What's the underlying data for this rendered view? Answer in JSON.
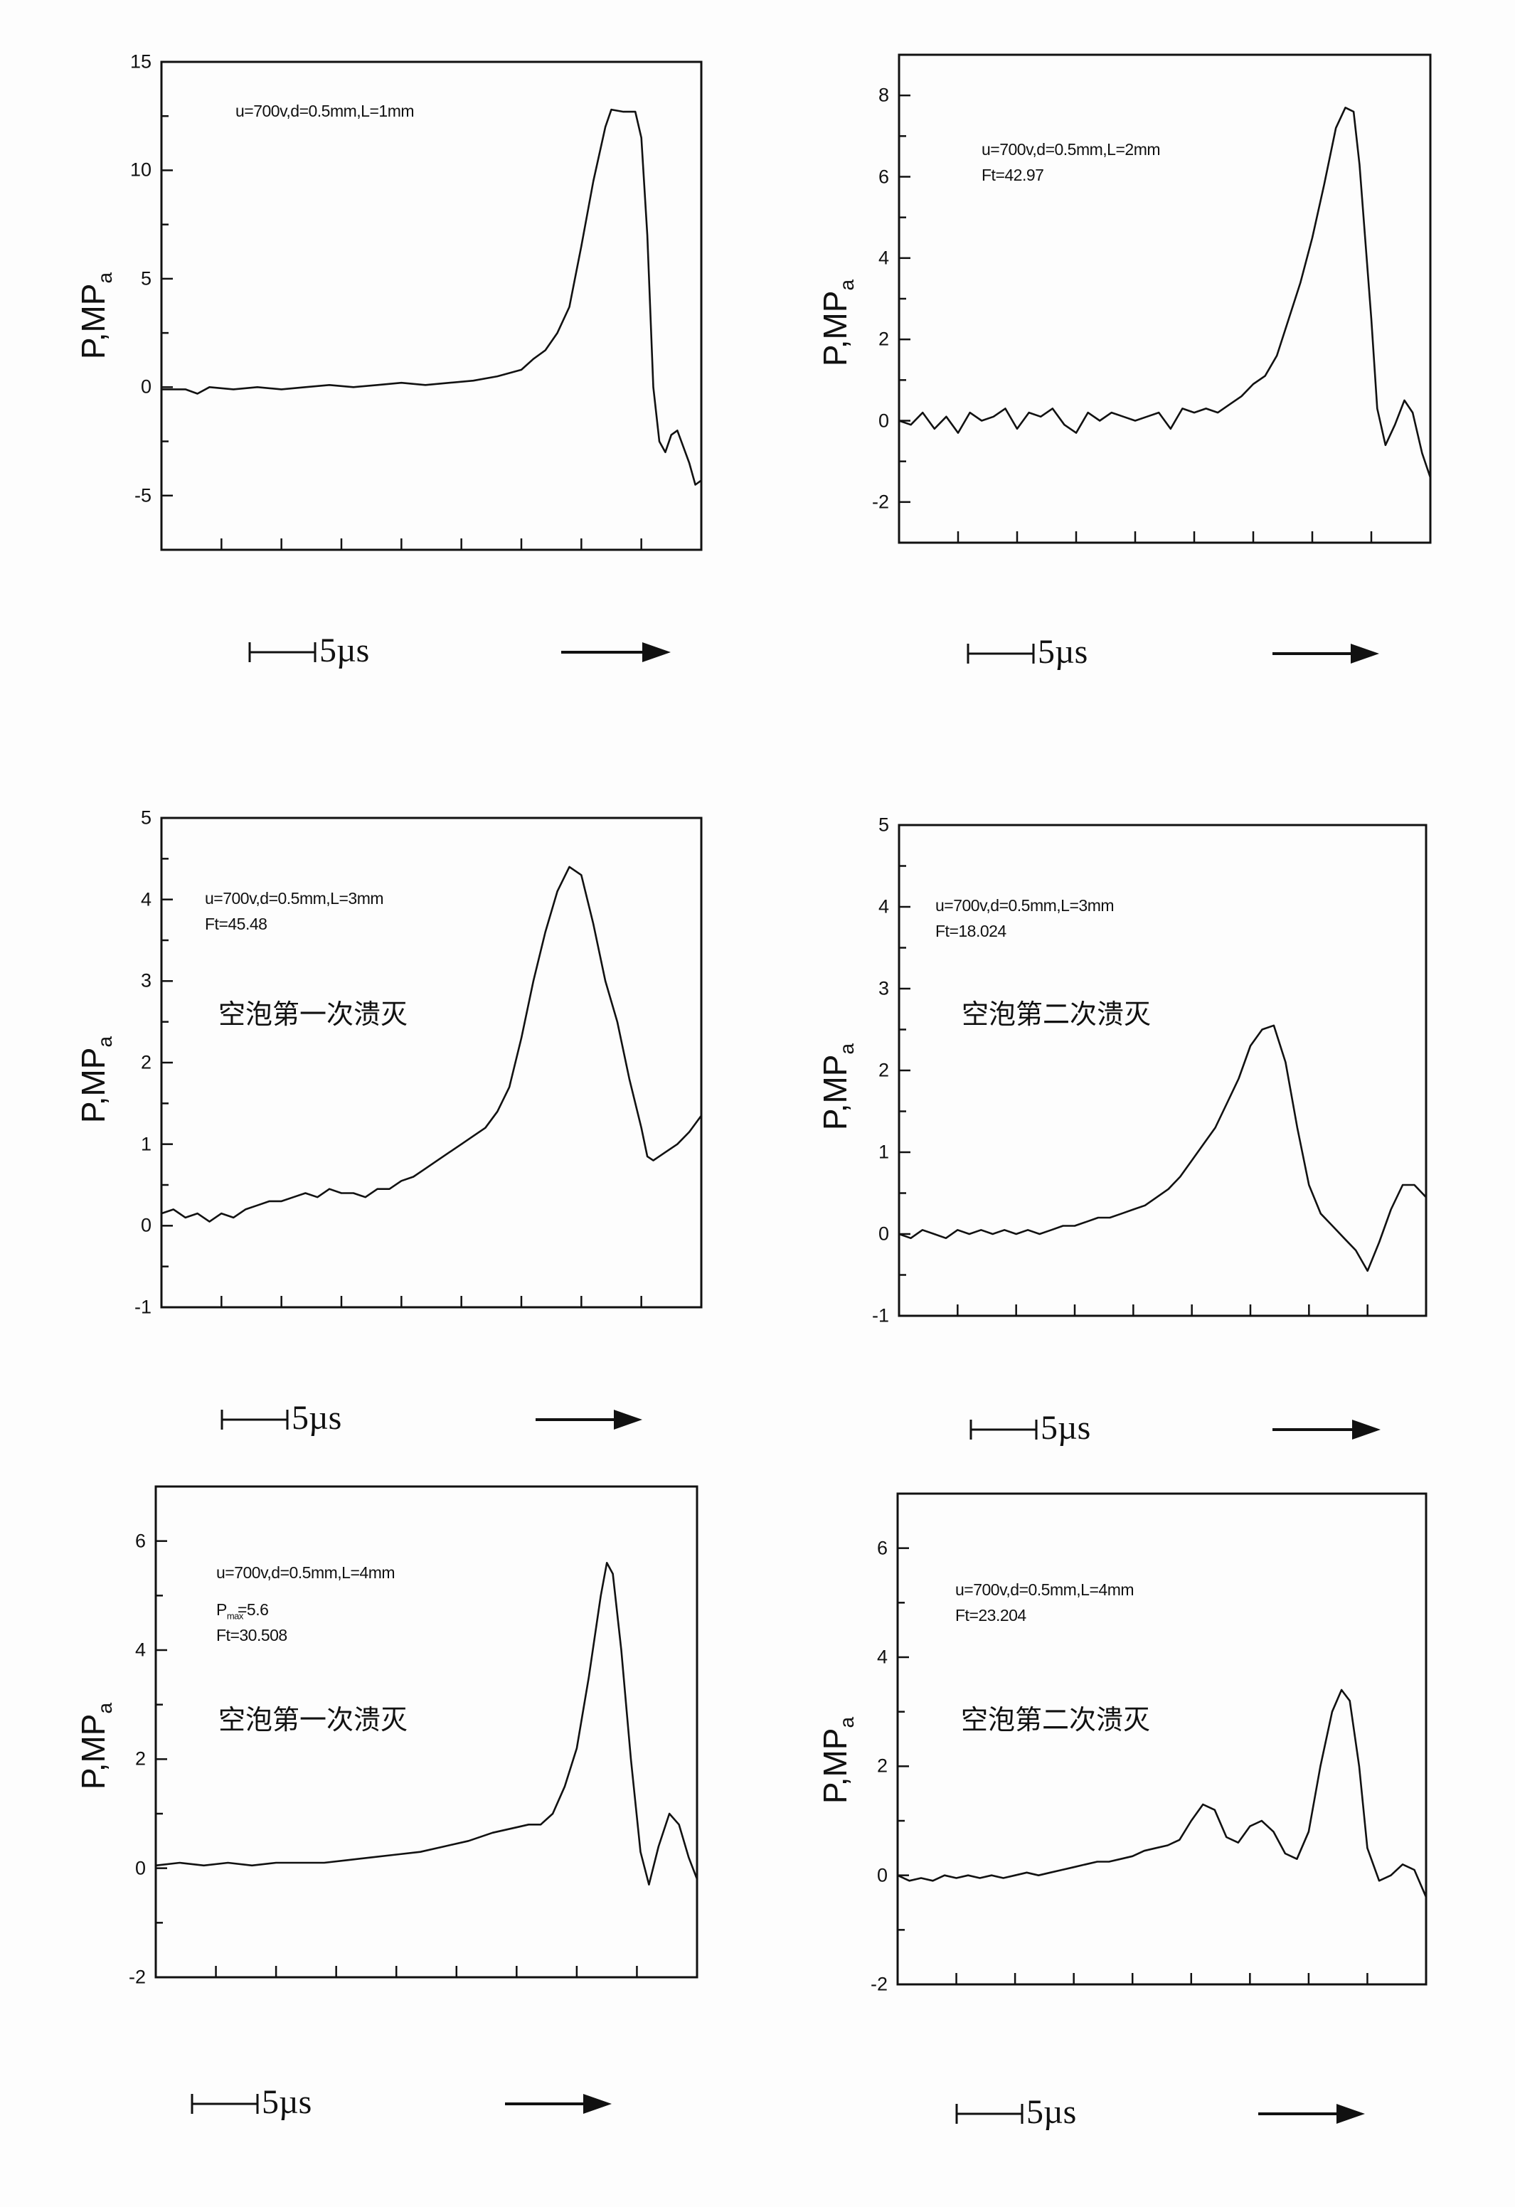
{
  "chart_data": [
    {
      "type": "line",
      "annotations": [
        "u=700v,d=0.5mm,L=1mm"
      ],
      "ylabel": {
        "main": "P,MP",
        "sub": "a"
      },
      "ylim": [
        -7.5,
        15
      ],
      "yticks": [
        -5,
        0,
        5,
        10,
        15
      ],
      "yminor_step": 2.5,
      "xlim": [
        0,
        45
      ],
      "xtick_step": 5,
      "x_unit": "µs",
      "scale_bar": "5µs",
      "points": [
        [
          0,
          -0.1
        ],
        [
          2,
          -0.1
        ],
        [
          3,
          -0.3
        ],
        [
          4,
          0
        ],
        [
          6,
          -0.1
        ],
        [
          8,
          0
        ],
        [
          10,
          -0.1
        ],
        [
          12,
          0
        ],
        [
          14,
          0.1
        ],
        [
          16,
          0
        ],
        [
          18,
          0.1
        ],
        [
          20,
          0.2
        ],
        [
          22,
          0.1
        ],
        [
          24,
          0.2
        ],
        [
          26,
          0.3
        ],
        [
          28,
          0.5
        ],
        [
          30,
          0.8
        ],
        [
          31,
          1.3
        ],
        [
          32,
          1.7
        ],
        [
          33,
          2.5
        ],
        [
          34,
          3.7
        ],
        [
          35,
          6.5
        ],
        [
          36,
          9.5
        ],
        [
          37,
          12.0
        ],
        [
          37.5,
          12.8
        ],
        [
          38.5,
          12.7
        ],
        [
          39.5,
          12.7
        ],
        [
          40,
          11.5
        ],
        [
          40.5,
          7
        ],
        [
          41,
          0
        ],
        [
          41.5,
          -2.5
        ],
        [
          42,
          -3.0
        ],
        [
          42.5,
          -2.2
        ],
        [
          43,
          -2.0
        ],
        [
          44,
          -3.5
        ],
        [
          44.5,
          -4.5
        ],
        [
          45,
          -4.3
        ]
      ]
    },
    {
      "type": "line",
      "annotations": [
        "u=700v,d=0.5mm,L=2mm",
        "Ft=42.97"
      ],
      "ylabel": {
        "main": "P,MP",
        "sub": "a"
      },
      "ylim": [
        -3,
        9
      ],
      "yticks": [
        -2,
        0,
        2,
        4,
        6,
        8
      ],
      "yminor_step": 1,
      "xlim": [
        0,
        45
      ],
      "xtick_step": 5,
      "x_unit": "µs",
      "scale_bar": "5µs",
      "points": [
        [
          0,
          0
        ],
        [
          1,
          -0.1
        ],
        [
          2,
          0.2
        ],
        [
          3,
          -0.2
        ],
        [
          4,
          0.1
        ],
        [
          5,
          -0.3
        ],
        [
          6,
          0.2
        ],
        [
          7,
          0
        ],
        [
          8,
          0.1
        ],
        [
          9,
          0.3
        ],
        [
          10,
          -0.2
        ],
        [
          11,
          0.2
        ],
        [
          12,
          0.1
        ],
        [
          13,
          0.3
        ],
        [
          14,
          -0.1
        ],
        [
          15,
          -0.3
        ],
        [
          16,
          0.2
        ],
        [
          17,
          0
        ],
        [
          18,
          0.2
        ],
        [
          19,
          0.1
        ],
        [
          20,
          0
        ],
        [
          21,
          0.1
        ],
        [
          22,
          0.2
        ],
        [
          23,
          -0.2
        ],
        [
          24,
          0.3
        ],
        [
          25,
          0.2
        ],
        [
          26,
          0.3
        ],
        [
          27,
          0.2
        ],
        [
          28,
          0.4
        ],
        [
          29,
          0.6
        ],
        [
          30,
          0.9
        ],
        [
          31,
          1.1
        ],
        [
          32,
          1.6
        ],
        [
          33,
          2.5
        ],
        [
          34,
          3.4
        ],
        [
          35,
          4.5
        ],
        [
          36,
          5.8
        ],
        [
          37,
          7.2
        ],
        [
          37.8,
          7.7
        ],
        [
          38.5,
          7.6
        ],
        [
          39,
          6.3
        ],
        [
          40,
          2.5
        ],
        [
          40.5,
          0.3
        ],
        [
          41.2,
          -0.6
        ],
        [
          42,
          -0.1
        ],
        [
          42.8,
          0.5
        ],
        [
          43.5,
          0.2
        ],
        [
          44.3,
          -0.8
        ],
        [
          45,
          -1.4
        ]
      ]
    },
    {
      "type": "line",
      "annotations": [
        "u=700v,d=0.5mm,L=3mm",
        "Ft=45.48"
      ],
      "label_cn": "空泡第一次溃灭",
      "ylabel": {
        "main": "P,MP",
        "sub": "a"
      },
      "ylim": [
        -1,
        5
      ],
      "yticks": [
        -1,
        0,
        1,
        2,
        3,
        4,
        5
      ],
      "yminor_step": 0.5,
      "xlim": [
        0,
        45
      ],
      "xtick_step": 5,
      "x_unit": "µs",
      "scale_bar": "5µs",
      "points": [
        [
          0,
          0.15
        ],
        [
          1,
          0.2
        ],
        [
          2,
          0.1
        ],
        [
          3,
          0.15
        ],
        [
          4,
          0.05
        ],
        [
          5,
          0.15
        ],
        [
          6,
          0.1
        ],
        [
          7,
          0.2
        ],
        [
          8,
          0.25
        ],
        [
          9,
          0.3
        ],
        [
          10,
          0.3
        ],
        [
          11,
          0.35
        ],
        [
          12,
          0.4
        ],
        [
          13,
          0.35
        ],
        [
          14,
          0.45
        ],
        [
          15,
          0.4
        ],
        [
          16,
          0.4
        ],
        [
          17,
          0.35
        ],
        [
          18,
          0.45
        ],
        [
          19,
          0.45
        ],
        [
          20,
          0.55
        ],
        [
          21,
          0.6
        ],
        [
          22,
          0.7
        ],
        [
          23,
          0.8
        ],
        [
          24,
          0.9
        ],
        [
          25,
          1.0
        ],
        [
          26,
          1.1
        ],
        [
          27,
          1.2
        ],
        [
          28,
          1.4
        ],
        [
          29,
          1.7
        ],
        [
          30,
          2.3
        ],
        [
          31,
          3.0
        ],
        [
          32,
          3.6
        ],
        [
          33,
          4.1
        ],
        [
          34,
          4.4
        ],
        [
          35,
          4.3
        ],
        [
          36,
          3.7
        ],
        [
          37,
          3.0
        ],
        [
          38,
          2.5
        ],
        [
          39,
          1.8
        ],
        [
          40,
          1.2
        ],
        [
          40.5,
          0.85
        ],
        [
          41,
          0.8
        ],
        [
          42,
          0.9
        ],
        [
          43,
          1.0
        ],
        [
          44,
          1.15
        ],
        [
          45,
          1.35
        ]
      ]
    },
    {
      "type": "line",
      "annotations": [
        "u=700v,d=0.5mm,L=3mm",
        "Ft=18.024"
      ],
      "label_cn": "空泡第二次溃灭",
      "ylabel": {
        "main": "P,MP",
        "sub": "a"
      },
      "ylim": [
        -1,
        5
      ],
      "yticks": [
        -1,
        0,
        1,
        2,
        3,
        4,
        5
      ],
      "yminor_step": 0.5,
      "xlim": [
        0,
        45
      ],
      "xtick_step": 5,
      "x_unit": "µs",
      "scale_bar": "5µs",
      "points": [
        [
          0,
          0
        ],
        [
          1,
          -0.05
        ],
        [
          2,
          0.05
        ],
        [
          3,
          0
        ],
        [
          4,
          -0.05
        ],
        [
          5,
          0.05
        ],
        [
          6,
          0
        ],
        [
          7,
          0.05
        ],
        [
          8,
          0
        ],
        [
          9,
          0.05
        ],
        [
          10,
          0
        ],
        [
          11,
          0.05
        ],
        [
          12,
          0
        ],
        [
          13,
          0.05
        ],
        [
          14,
          0.1
        ],
        [
          15,
          0.1
        ],
        [
          16,
          0.15
        ],
        [
          17,
          0.2
        ],
        [
          18,
          0.2
        ],
        [
          19,
          0.25
        ],
        [
          20,
          0.3
        ],
        [
          21,
          0.35
        ],
        [
          22,
          0.45
        ],
        [
          23,
          0.55
        ],
        [
          24,
          0.7
        ],
        [
          25,
          0.9
        ],
        [
          26,
          1.1
        ],
        [
          27,
          1.3
        ],
        [
          28,
          1.6
        ],
        [
          29,
          1.9
        ],
        [
          30,
          2.3
        ],
        [
          31,
          2.5
        ],
        [
          32,
          2.55
        ],
        [
          33,
          2.1
        ],
        [
          34,
          1.3
        ],
        [
          35,
          0.6
        ],
        [
          36,
          0.25
        ],
        [
          37,
          0.1
        ],
        [
          38,
          -0.05
        ],
        [
          39,
          -0.2
        ],
        [
          40,
          -0.45
        ],
        [
          41,
          -0.1
        ],
        [
          42,
          0.3
        ],
        [
          43,
          0.6
        ],
        [
          44,
          0.6
        ],
        [
          45,
          0.45
        ]
      ]
    },
    {
      "type": "line",
      "annotations": [
        "u=700v,d=0.5mm,L=4mm",
        "=5.6",
        "Ft=30.508"
      ],
      "pmax_symbol": {
        "main": "P",
        "sub": "max"
      },
      "label_cn": "空泡第一次溃灭",
      "ylabel": {
        "main": "P,MP",
        "sub": "a"
      },
      "ylim": [
        -2,
        7
      ],
      "yticks": [
        -2,
        0,
        2,
        4,
        6
      ],
      "yminor_step": 1,
      "xlim": [
        0,
        45
      ],
      "xtick_step": 5,
      "x_unit": "µs",
      "scale_bar": "5µs",
      "points": [
        [
          0,
          0.05
        ],
        [
          2,
          0.1
        ],
        [
          4,
          0.05
        ],
        [
          6,
          0.1
        ],
        [
          8,
          0.05
        ],
        [
          10,
          0.1
        ],
        [
          12,
          0.1
        ],
        [
          14,
          0.1
        ],
        [
          16,
          0.15
        ],
        [
          18,
          0.2
        ],
        [
          20,
          0.25
        ],
        [
          22,
          0.3
        ],
        [
          24,
          0.4
        ],
        [
          26,
          0.5
        ],
        [
          28,
          0.65
        ],
        [
          30,
          0.75
        ],
        [
          31,
          0.8
        ],
        [
          32,
          0.8
        ],
        [
          33,
          1.0
        ],
        [
          34,
          1.5
        ],
        [
          35,
          2.2
        ],
        [
          36,
          3.5
        ],
        [
          37,
          5.0
        ],
        [
          37.5,
          5.6
        ],
        [
          38,
          5.4
        ],
        [
          38.7,
          4.0
        ],
        [
          39.5,
          2.0
        ],
        [
          40.3,
          0.3
        ],
        [
          41,
          -0.3
        ],
        [
          41.8,
          0.4
        ],
        [
          42.7,
          1.0
        ],
        [
          43.5,
          0.8
        ],
        [
          44.3,
          0.2
        ],
        [
          45,
          -0.2
        ]
      ]
    },
    {
      "type": "line",
      "annotations": [
        "u=700v,d=0.5mm,L=4mm",
        "Ft=23.204"
      ],
      "label_cn": "空泡第二次溃灭",
      "ylabel": {
        "main": "P,MP",
        "sub": "a"
      },
      "ylim": [
        -2,
        7
      ],
      "yticks": [
        -2,
        0,
        2,
        4,
        6
      ],
      "yminor_step": 1,
      "xlim": [
        0,
        45
      ],
      "xtick_step": 5,
      "x_unit": "µs",
      "scale_bar": "5µs",
      "points": [
        [
          0,
          0
        ],
        [
          1,
          -0.1
        ],
        [
          2,
          -0.05
        ],
        [
          3,
          -0.1
        ],
        [
          4,
          0
        ],
        [
          5,
          -0.05
        ],
        [
          6,
          0
        ],
        [
          7,
          -0.05
        ],
        [
          8,
          0
        ],
        [
          9,
          -0.05
        ],
        [
          10,
          0
        ],
        [
          11,
          0.05
        ],
        [
          12,
          0
        ],
        [
          13,
          0.05
        ],
        [
          14,
          0.1
        ],
        [
          15,
          0.15
        ],
        [
          16,
          0.2
        ],
        [
          17,
          0.25
        ],
        [
          18,
          0.25
        ],
        [
          19,
          0.3
        ],
        [
          20,
          0.35
        ],
        [
          21,
          0.45
        ],
        [
          22,
          0.5
        ],
        [
          23,
          0.55
        ],
        [
          24,
          0.65
        ],
        [
          25,
          1.0
        ],
        [
          26,
          1.3
        ],
        [
          27,
          1.2
        ],
        [
          28,
          0.7
        ],
        [
          29,
          0.6
        ],
        [
          30,
          0.9
        ],
        [
          31,
          1.0
        ],
        [
          32,
          0.8
        ],
        [
          33,
          0.4
        ],
        [
          34,
          0.3
        ],
        [
          35,
          0.8
        ],
        [
          36,
          2.0
        ],
        [
          37,
          3.0
        ],
        [
          37.8,
          3.4
        ],
        [
          38.5,
          3.2
        ],
        [
          39.3,
          2.0
        ],
        [
          40,
          0.5
        ],
        [
          41,
          -0.1
        ],
        [
          42,
          0.0
        ],
        [
          43,
          0.2
        ],
        [
          44,
          0.1
        ],
        [
          45,
          -0.4
        ]
      ]
    }
  ]
}
